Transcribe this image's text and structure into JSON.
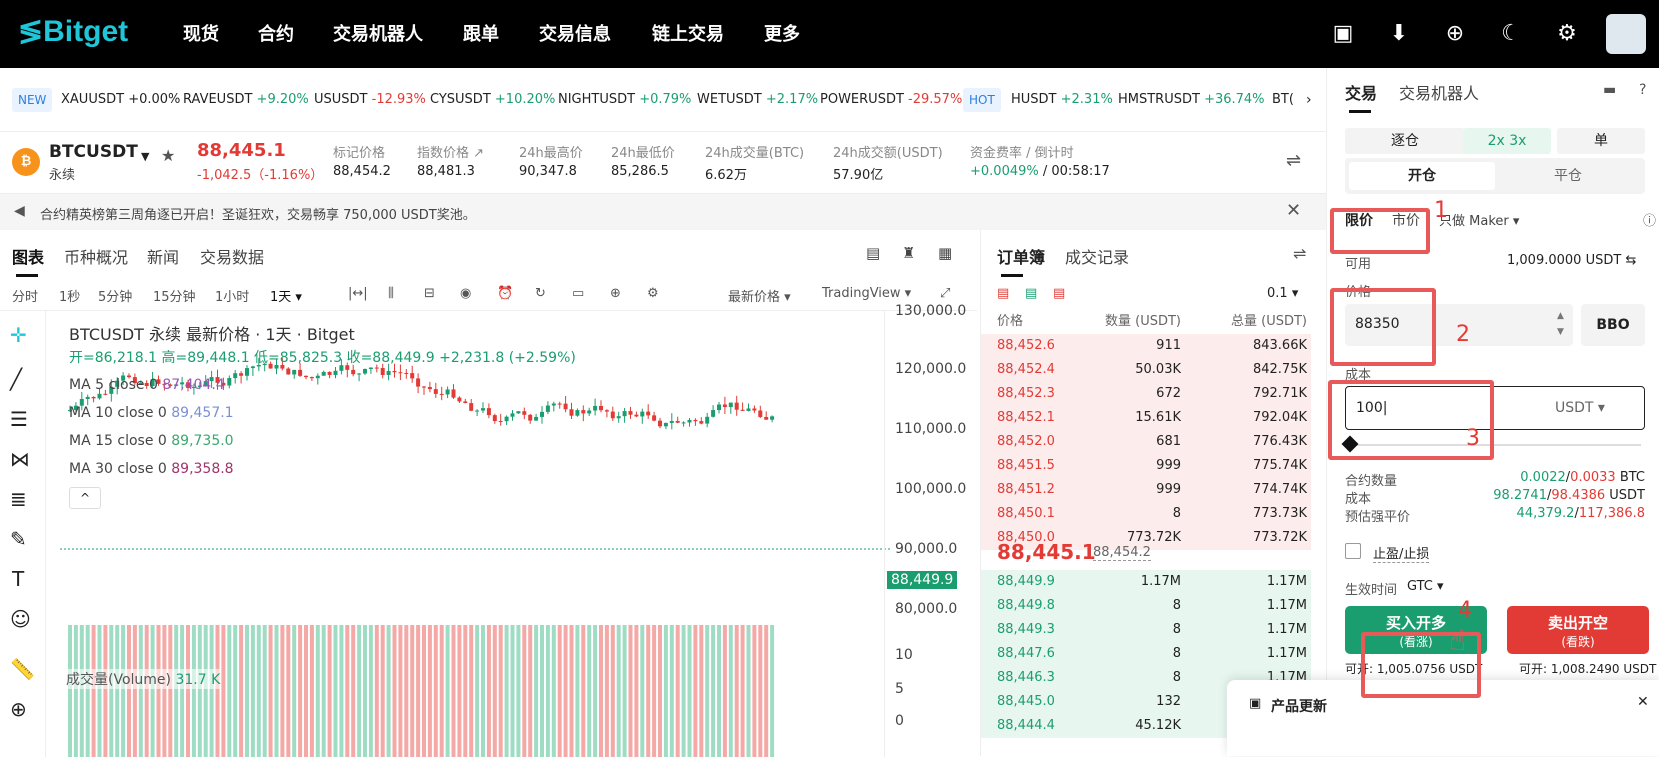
{
  "nav": {
    "logo": "Bitget",
    "items": [
      "现货",
      "合约",
      "交易机器人",
      "跟单",
      "交易信息",
      "链上交易",
      "更多"
    ]
  },
  "ticker": {
    "new_tag": "NEW",
    "hot_tag": "HOT",
    "items": [
      {
        "sym": "XAUUSDT",
        "chg": "+0.00%"
      },
      {
        "sym": "RAVEUSDT",
        "chg": "+9.20%"
      },
      {
        "sym": "USUSDT",
        "chg": "-12.93%"
      },
      {
        "sym": "CYSUSDT",
        "chg": "+10.20%"
      },
      {
        "sym": "NIGHTUSDT",
        "chg": "+0.79%"
      },
      {
        "sym": "WETUSDT",
        "chg": "+2.17%"
      },
      {
        "sym": "POWERUSDT",
        "chg": "-29.57%"
      },
      {
        "sym": "HUSDT",
        "chg": "+2.31%"
      },
      {
        "sym": "HMSTRUSDT",
        "chg": "+36.74%"
      },
      {
        "sym": "BT(",
        "chg": ""
      }
    ]
  },
  "instrument": {
    "symbol": "BTCUSDT",
    "type": "永续",
    "price": "88,445.1",
    "change": "-1,042.5（-1.16%）",
    "stats": [
      {
        "label": "标记价格",
        "value": "88,454.2"
      },
      {
        "label": "指数价格",
        "value": "88,481.3"
      },
      {
        "label": "24h最高价",
        "value": "90,347.8"
      },
      {
        "label": "24h最低价",
        "value": "85,286.5"
      },
      {
        "label": "24h成交量(BTC)",
        "value": "6.62万"
      },
      {
        "label": "24h成交额(USDT)",
        "value": "57.90亿"
      },
      {
        "label": "资金费率 / 倒计时",
        "value": "+0.0049%",
        "value2": "/ 00:58:17"
      }
    ]
  },
  "notice": "合约精英榜第三周角逐已开启！圣诞狂欢，交易畅享 750,000 USDT奖池。",
  "chart": {
    "tabs": [
      "图表",
      "币种概况",
      "新闻",
      "交易数据"
    ],
    "timeframes": [
      "分时",
      "1秒",
      "5分钟",
      "15分钟",
      "1小时",
      "1天"
    ],
    "price_mode": "最新价格",
    "view": "TradingView",
    "title": "BTCUSDT 永续 最新价格 · 1天 · Bitget",
    "ohlc": "开=86,218.1 高=89,448.1 低=85,825.3 收=88,449.9 +2,231.8 (+2.59%)",
    "ma": [
      {
        "name": "MA 5 close 0",
        "value": "87,404.4",
        "color": "#9b59b6"
      },
      {
        "name": "MA 10 close 0",
        "value": "89,457.1",
        "color": "#7b8fd6"
      },
      {
        "name": "MA 15 close 0",
        "value": "89,735.0",
        "color": "#3aa76d"
      },
      {
        "name": "MA 30 close 0",
        "value": "89,358.8",
        "color": "#a0336b"
      }
    ],
    "y_ticks": [
      "130,000.0",
      "120,000.0",
      "110,000.0",
      "100,000.0",
      "90,000.0",
      "80,000.0"
    ],
    "last_price_tag": "88,449.9",
    "volume_label": "成交量(Volume)",
    "volume_value": "31.7 K",
    "vol_ticks": [
      "10",
      "5",
      "0"
    ]
  },
  "orderbook": {
    "tabs": [
      "订单簿",
      "成交记录"
    ],
    "precision": "0.1",
    "headers": [
      "价格",
      "数量 (USDT)",
      "总量 (USDT)"
    ],
    "asks": [
      [
        "88,452.6",
        "911",
        "843.66K"
      ],
      [
        "88,452.4",
        "50.03K",
        "842.75K"
      ],
      [
        "88,452.3",
        "672",
        "792.71K"
      ],
      [
        "88,452.1",
        "15.61K",
        "792.04K"
      ],
      [
        "88,452.0",
        "681",
        "776.43K"
      ],
      [
        "88,451.5",
        "999",
        "775.74K"
      ],
      [
        "88,451.2",
        "999",
        "774.74K"
      ],
      [
        "88,450.1",
        "8",
        "773.73K"
      ],
      [
        "88,450.0",
        "773.72K",
        "773.72K"
      ]
    ],
    "mid": "88,445.1",
    "mid_mark": "88,454.2",
    "bids": [
      [
        "88,449.9",
        "1.17M",
        "1.17M"
      ],
      [
        "88,449.8",
        "8",
        "1.17M"
      ],
      [
        "88,449.3",
        "8",
        "1.17M"
      ],
      [
        "88,447.6",
        "8",
        "1.17M"
      ],
      [
        "88,446.3",
        "8",
        "1.17M"
      ],
      [
        "88,445.0",
        "132",
        "1.17M"
      ],
      [
        "88,444.4",
        "45.12K",
        "1.17M"
      ]
    ]
  },
  "panel": {
    "tabs": [
      "交易",
      "交易机器人"
    ],
    "margin": "逐仓",
    "leverage": "2x 3x",
    "mode": "单",
    "open": "开仓",
    "close": "平仓",
    "order_types": [
      "限价",
      "市价"
    ],
    "maker": "只做 Maker",
    "available_label": "可用",
    "available": "1,009.0000 USDT",
    "price_label": "价格",
    "price_value": "88350",
    "bbo": "BBO",
    "cost_label": "成本",
    "cost_value": "100",
    "unit": "USDT",
    "qty_label": "合约数量",
    "qty_a": "0.0022",
    "qty_b": "0.0033",
    "qty_unit": "BTC",
    "cost2_label": "成本",
    "cost_a": "98.2741",
    "cost_b": "98.4386",
    "cost_unit": "USDT",
    "liq_label": "预估强平价",
    "liq_a": "44,379.2",
    "liq_b": "117,386.8",
    "tpsl": "止盈/止损",
    "tif_label": "生效时间",
    "tif": "GTC",
    "buy": "买入开多",
    "buy_sub": "(看涨)",
    "sell": "卖出开空",
    "sell_sub": "(看跌)",
    "avail_buy": "可开: 1,005.0756 USDT",
    "avail_sell": "可开: 1,008.2490 USDT",
    "update": "产品更新",
    "steps": [
      "1",
      "2",
      "3",
      "4"
    ]
  }
}
